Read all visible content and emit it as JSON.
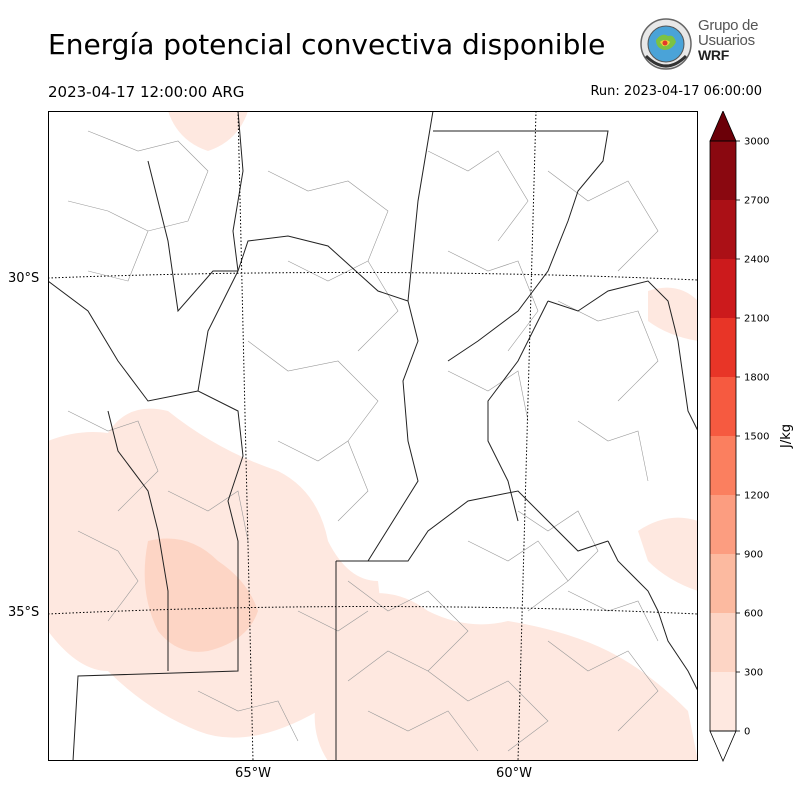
{
  "title": "Energía potencial convectiva disponible",
  "valid_time": "2023-04-17 12:00:00 ARG",
  "run_time": "Run: 2023-04-17 06:00:00",
  "logo": {
    "line1": "Grupo de",
    "line2": "Usuarios",
    "line3": "WRF",
    "icon": "globe-seal-icon"
  },
  "map": {
    "lat_labels": [
      "30°S",
      "35°S"
    ],
    "lon_labels": [
      "65°W",
      "60°W"
    ]
  },
  "colorbar": {
    "unit": "J/kg",
    "ticks": [
      "0",
      "300",
      "600",
      "900",
      "1200",
      "1500",
      "1800",
      "2100",
      "2400",
      "2700",
      "3000"
    ],
    "colors": [
      "#fee8e0",
      "#fdd5c5",
      "#fcbaa0",
      "#fc9d80",
      "#fb7f5f",
      "#f65a40",
      "#e83527",
      "#cc1a1c",
      "#ab1016",
      "#8a0810",
      "#6b0008"
    ]
  }
}
